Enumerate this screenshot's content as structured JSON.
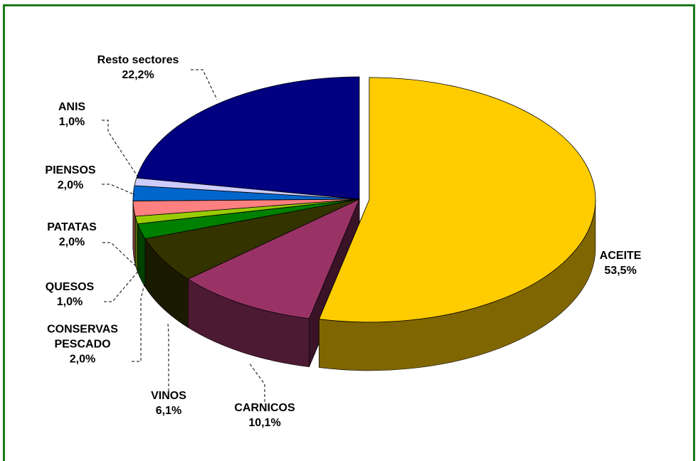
{
  "chart_data": {
    "type": "pie",
    "title": "",
    "style": "3d-exploded",
    "slices": [
      {
        "name": "ACEITE",
        "value": 53.5,
        "label": "53,5%",
        "color": "#FFCC00"
      },
      {
        "name": "CARNICOS",
        "value": 10.1,
        "label": "10,1%",
        "color": "#993366"
      },
      {
        "name": "VINOS",
        "value": 6.1,
        "label": "6,1%",
        "color": "#333300"
      },
      {
        "name": "CONSERVAS PESCADO",
        "value": 2.0,
        "label": "2,0%",
        "color": "#008000"
      },
      {
        "name": "QUESOS",
        "value": 1.0,
        "label": "1,0%",
        "color": "#99CC00"
      },
      {
        "name": "PATATAS",
        "value": 2.0,
        "label": "2,0%",
        "color": "#FF8080"
      },
      {
        "name": "PIENSOS",
        "value": 2.0,
        "label": "2,0%",
        "color": "#0066CC"
      },
      {
        "name": "ANIS",
        "value": 1.0,
        "label": "1,0%",
        "color": "#CCCCFF"
      },
      {
        "name": "Resto sectores",
        "value": 22.2,
        "label": "22,2%",
        "color": "#000080"
      }
    ]
  },
  "labels": [
    {
      "name_lines": [
        "ACEITE"
      ],
      "pct": "53,5%"
    },
    {
      "name_lines": [
        "CARNICOS"
      ],
      "pct": "10,1%"
    },
    {
      "name_lines": [
        "VINOS"
      ],
      "pct": "6,1%"
    },
    {
      "name_lines": [
        "CONSERVAS",
        "PESCADO"
      ],
      "pct": "2,0%"
    },
    {
      "name_lines": [
        "QUESOS"
      ],
      "pct": "1,0%"
    },
    {
      "name_lines": [
        "PATATAS"
      ],
      "pct": "2,0%"
    },
    {
      "name_lines": [
        "PIENSOS"
      ],
      "pct": "2,0%"
    },
    {
      "name_lines": [
        "ANIS"
      ],
      "pct": "1,0%"
    },
    {
      "name_lines": [
        "Resto sectores"
      ],
      "pct": "22,2%"
    }
  ]
}
